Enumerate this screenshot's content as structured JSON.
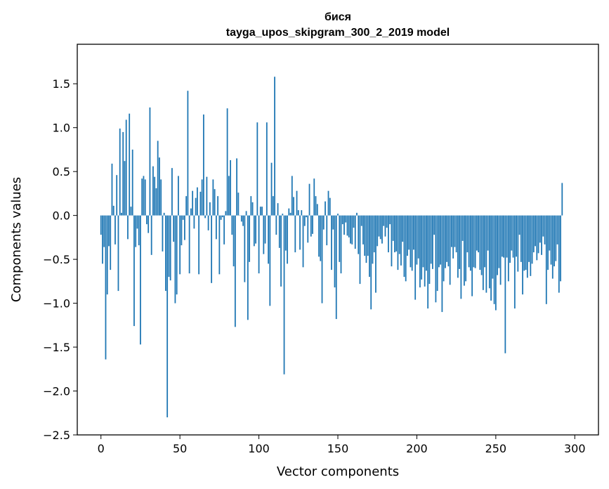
{
  "chart_data": {
    "type": "bar",
    "title": "бися",
    "subtitle": "tayga_upos_skipgram_300_2_2019 model",
    "xlabel": "Vector components",
    "ylabel": "Components values",
    "xlim": [
      -15,
      315
    ],
    "ylim": [
      -2.5,
      1.95
    ],
    "xticks": [
      0,
      50,
      100,
      150,
      200,
      250,
      300
    ],
    "yticks": [
      -2.5,
      -2.0,
      -1.5,
      -1.0,
      -0.5,
      0.0,
      0.5,
      1.0,
      1.5
    ],
    "ytick_labels": [
      "−2.5",
      "−2.0",
      "−1.5",
      "−1.0",
      "−0.5",
      "0.0",
      "0.5",
      "1.0",
      "1.5"
    ],
    "bar_color": "#1f77b4",
    "values": [
      -0.22,
      -0.55,
      -0.36,
      -1.64,
      -0.9,
      -0.35,
      -0.62,
      0.59,
      0.11,
      -0.33,
      0.46,
      -0.86,
      0.99,
      0.03,
      0.95,
      0.62,
      1.09,
      -0.27,
      1.16,
      0.1,
      0.75,
      -1.26,
      -0.36,
      -0.15,
      -0.34,
      -1.47,
      0.42,
      0.45,
      0.41,
      -0.1,
      -0.2,
      1.23,
      -0.45,
      0.56,
      0.44,
      0.31,
      0.85,
      0.66,
      0.41,
      -0.41,
      0.03,
      -0.86,
      -2.3,
      -0.7,
      -0.74,
      0.54,
      -0.3,
      -1.0,
      -0.9,
      0.45,
      -0.67,
      -0.34,
      -0.05,
      -0.28,
      0.22,
      1.42,
      -0.66,
      0.08,
      0.28,
      -0.15,
      0.2,
      0.32,
      -0.67,
      0.27,
      0.41,
      1.15,
      -0.03,
      0.44,
      -0.17,
      0.15,
      -0.77,
      0.41,
      0.3,
      -0.27,
      0.22,
      -0.67,
      -0.05,
      -0.02,
      -0.33,
      0.05,
      1.22,
      0.45,
      0.63,
      -0.22,
      -0.58,
      -1.27,
      0.65,
      0.26,
      0.0,
      -0.07,
      -0.12,
      -0.76,
      0.05,
      -1.19,
      -0.53,
      0.22,
      0.15,
      -0.35,
      -0.32,
      1.06,
      -0.66,
      0.1,
      0.1,
      -0.44,
      -0.32,
      1.06,
      -0.55,
      -1.03,
      0.6,
      0.22,
      1.58,
      -0.22,
      0.14,
      -0.37,
      -0.81,
      0.02,
      -1.81,
      -0.4,
      -0.55,
      0.08,
      0.03,
      0.45,
      0.21,
      -0.42,
      0.28,
      0.06,
      -0.39,
      0.06,
      -0.59,
      -0.12,
      -0.02,
      -0.31,
      0.36,
      -0.24,
      -0.21,
      0.42,
      0.22,
      0.13,
      -0.47,
      -0.52,
      -1.0,
      -0.16,
      0.16,
      -0.34,
      0.28,
      0.2,
      -0.62,
      -0.16,
      -0.82,
      -1.18,
      0.02,
      -0.53,
      -0.66,
      -0.1,
      -0.22,
      -0.08,
      -0.23,
      -0.25,
      -0.32,
      -0.33,
      -0.14,
      -0.38,
      0.03,
      -0.44,
      -0.78,
      -0.12,
      -0.33,
      -0.46,
      -0.54,
      -0.46,
      -0.7,
      -1.07,
      -0.55,
      -0.42,
      -0.88,
      -0.35,
      -0.24,
      -0.27,
      -0.32,
      -0.12,
      -0.24,
      -0.14,
      -0.42,
      -0.1,
      -0.58,
      -0.29,
      -0.42,
      -0.41,
      -0.62,
      -0.44,
      -0.57,
      -0.3,
      -0.7,
      -0.75,
      -0.46,
      -0.39,
      -0.59,
      -0.63,
      -0.39,
      -0.96,
      -0.56,
      -0.49,
      -0.82,
      -0.73,
      -0.59,
      -0.81,
      -0.63,
      -1.06,
      -0.78,
      -0.55,
      -0.61,
      -0.22,
      -0.99,
      -0.86,
      -0.59,
      -0.56,
      -1.1,
      -0.75,
      -0.6,
      -0.53,
      -0.58,
      -0.79,
      -0.36,
      -0.49,
      -0.36,
      -0.42,
      -0.71,
      -0.61,
      -0.95,
      -0.29,
      -0.8,
      -0.75,
      -0.42,
      -0.59,
      -0.63,
      -0.92,
      -0.59,
      -0.6,
      -0.4,
      -0.42,
      -0.62,
      -0.68,
      -0.85,
      -0.59,
      -0.88,
      -0.4,
      -0.83,
      -0.97,
      -0.72,
      -1.01,
      -1.08,
      -0.68,
      -0.6,
      -0.79,
      -0.47,
      -0.48,
      -1.57,
      -0.48,
      -0.75,
      -0.54,
      -0.4,
      -0.48,
      -1.06,
      -0.47,
      -0.64,
      -0.22,
      -0.53,
      -0.9,
      -0.63,
      -0.62,
      -0.71,
      -0.53,
      -0.69,
      -0.55,
      -0.42,
      -0.35,
      -0.51,
      -0.43,
      -0.31,
      -0.45,
      -0.24,
      -0.33,
      -1.01,
      -0.62,
      -0.4,
      -0.56,
      -0.72,
      -0.58,
      -0.52,
      -0.33,
      -0.88,
      -0.75,
      0.37
    ]
  }
}
